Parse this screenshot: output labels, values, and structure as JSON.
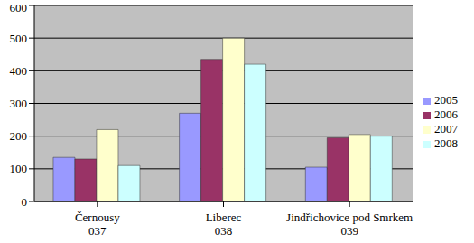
{
  "chart_data": {
    "type": "bar",
    "categories": [
      "Černousy\n037",
      "Liberec\n038",
      "Jindřichovice pod Smrkem\n039"
    ],
    "series": [
      {
        "name": "2005",
        "color": "#9999ff",
        "values": [
          135,
          270,
          105
        ]
      },
      {
        "name": "2006",
        "color": "#993366",
        "values": [
          130,
          435,
          195
        ]
      },
      {
        "name": "2007",
        "color": "#ffffcc",
        "values": [
          220,
          500,
          205
        ]
      },
      {
        "name": "2008",
        "color": "#ccffff",
        "values": [
          110,
          420,
          200
        ]
      }
    ],
    "ylim": [
      0,
      600
    ],
    "yticks": [
      0,
      100,
      200,
      300,
      400,
      500,
      600
    ],
    "grid": true,
    "legend": "right"
  }
}
